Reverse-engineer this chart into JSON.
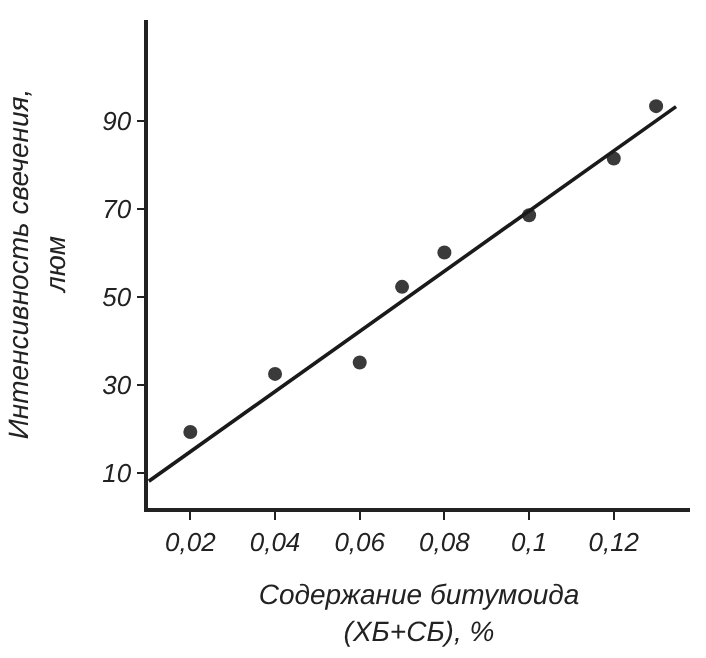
{
  "chart_data": {
    "type": "scatter",
    "xlabel": "Содержание битумоида\n(ХБ+СБ), %",
    "ylabel": "Интенсивность свечения,\nлюм",
    "xlim": [
      0.01,
      0.138
    ],
    "ylim": [
      2,
      113
    ],
    "xticks": [
      {
        "value": 0.02,
        "label": "0,02"
      },
      {
        "value": 0.04,
        "label": "0,04"
      },
      {
        "value": 0.06,
        "label": "0,06"
      },
      {
        "value": 0.08,
        "label": "0,08"
      },
      {
        "value": 0.1,
        "label": "0,1"
      },
      {
        "value": 0.12,
        "label": "0,12"
      }
    ],
    "yticks": [
      10,
      30,
      50,
      70,
      90
    ],
    "marker": "circle",
    "series": [
      {
        "color": "#3a3a3a",
        "x": [
          0.02,
          0.04,
          0.06,
          0.07,
          0.08,
          0.1,
          0.12,
          0.13
        ],
        "values": [
          19.3,
          32.5,
          35.1,
          52.3,
          60.1,
          68.6,
          81.5,
          93.4
        ]
      },
      {
        "type": "line",
        "marker": "none",
        "color": "#1a1a1a",
        "x": [
          0.0102,
          0.1347
        ],
        "values": [
          8.1,
          93.3
        ]
      }
    ]
  }
}
